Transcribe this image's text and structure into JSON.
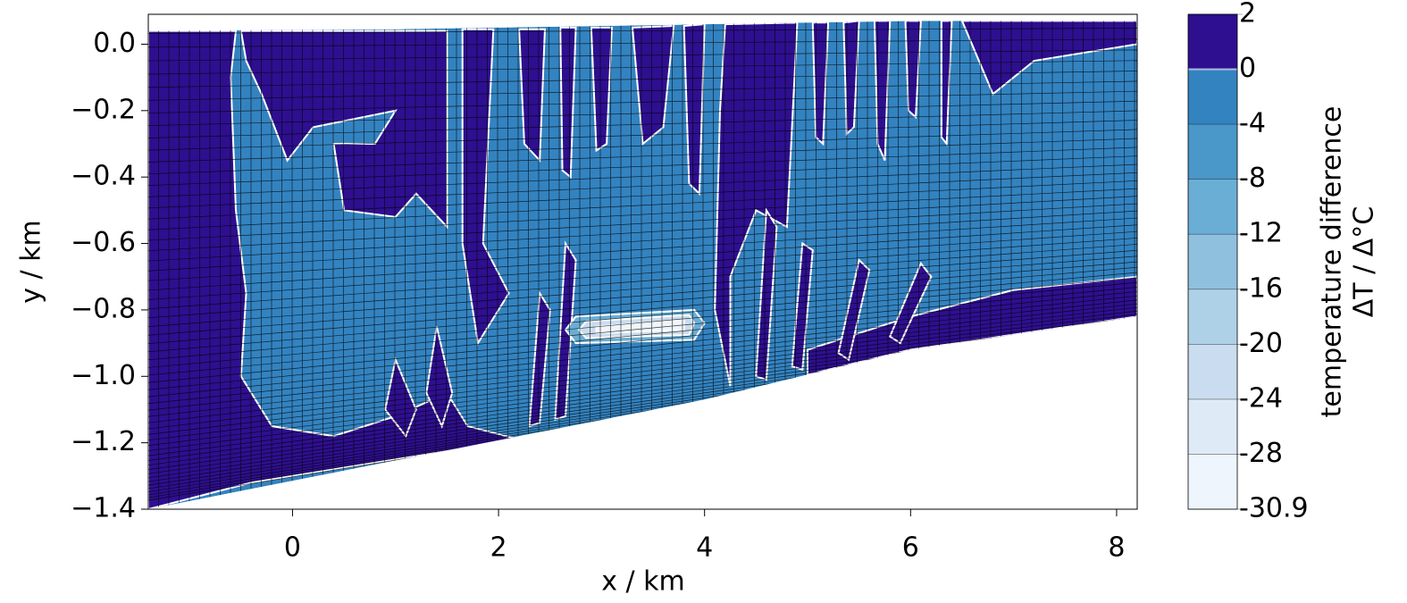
{
  "chart_data": {
    "type": "contour",
    "xlabel": "x / km",
    "ylabel": "y / km",
    "xlim": [
      -1.4,
      8.2
    ],
    "ylim": [
      -1.4,
      0.09
    ],
    "xticks": [
      0,
      2,
      4,
      6,
      8
    ],
    "yticks": [
      {
        "value": 0,
        "label": "0.0"
      },
      {
        "value": -0.2,
        "label": "−0.2"
      },
      {
        "value": -0.4,
        "label": "−0.4"
      },
      {
        "value": -0.6,
        "label": "−0.6"
      },
      {
        "value": -0.8,
        "label": "−0.8"
      },
      {
        "value": -1.0,
        "label": "−1.0"
      },
      {
        "value": -1.2,
        "label": "−1.2"
      },
      {
        "value": -1.4,
        "label": "−1.4"
      }
    ],
    "colorbar_label": [
      "temperature difference",
      "ΔT / Δ°C"
    ],
    "levels": [
      -30.9,
      -28,
      -24,
      -20,
      -16,
      -12,
      -8,
      -4,
      0,
      2
    ],
    "colors": [
      "#eef5fc",
      "#deebf7",
      "#cadcef",
      "#afd1e7",
      "#8fc1de",
      "#6aaed6",
      "#4a97c9",
      "#3383c0",
      "#2e0f8f"
    ],
    "regions": [
      {
        "value": -2,
        "x": [
          -1.4,
          1,
          4,
          6,
          8.2,
          8.2,
          6,
          4,
          -1.4
        ],
        "y": [
          0.04,
          0.045,
          0.06,
          0.07,
          0.07,
          -0.82,
          -0.92,
          -1.07,
          -1.4
        ]
      },
      {
        "value": 1,
        "x": [
          -1.4,
          -0.55,
          -0.6,
          -0.55,
          -0.45,
          -0.5,
          -0.2,
          0.4,
          1.0,
          1.5,
          1.7,
          2.2,
          -0.4,
          -1.4
        ],
        "y": [
          0.04,
          0.04,
          -0.1,
          -0.5,
          -0.75,
          -1.0,
          -1.15,
          -1.18,
          -1.12,
          -1.05,
          -1.15,
          -1.19,
          -1.32,
          -1.4
        ]
      },
      {
        "value": 1,
        "x": [
          -0.5,
          1.5,
          1.5,
          1.2,
          1.0,
          0.5,
          0.4,
          0.8,
          1.0,
          0.2,
          -0.05,
          -0.3,
          -0.45
        ],
        "y": [
          0.04,
          0.04,
          -0.55,
          -0.45,
          -0.52,
          -0.5,
          -0.3,
          -0.3,
          -0.2,
          -0.25,
          -0.35,
          -0.15,
          -0.05
        ]
      },
      {
        "value": 1,
        "x": [
          1.65,
          1.95,
          1.85,
          2.1,
          1.8,
          1.65
        ],
        "y": [
          0.045,
          0.045,
          -0.6,
          -0.75,
          -0.9,
          -0.6
        ]
      },
      {
        "value": 1,
        "x": [
          2.2,
          2.45,
          2.4,
          2.25
        ],
        "y": [
          0.045,
          0.045,
          -0.35,
          -0.3
        ]
      },
      {
        "value": 1,
        "x": [
          2.6,
          2.75,
          2.7,
          2.62
        ],
        "y": [
          0.05,
          0.05,
          -0.4,
          -0.38
        ]
      },
      {
        "value": 1,
        "x": [
          2.9,
          3.1,
          3.05,
          2.95
        ],
        "y": [
          0.05,
          0.05,
          -0.3,
          -0.32
        ]
      },
      {
        "value": 1,
        "x": [
          3.3,
          3.7,
          3.6,
          3.4
        ],
        "y": [
          0.05,
          0.055,
          -0.25,
          -0.3
        ]
      },
      {
        "value": 1,
        "x": [
          3.8,
          4.0,
          3.95,
          3.85
        ],
        "y": [
          0.055,
          0.06,
          -0.45,
          -0.42
        ]
      },
      {
        "value": 1,
        "x": [
          4.2,
          4.9,
          4.8,
          4.5,
          4.25,
          4.25,
          4.1,
          4.15
        ],
        "y": [
          0.06,
          0.065,
          -0.55,
          -0.5,
          -0.7,
          -1.03,
          -0.8,
          -0.2
        ]
      },
      {
        "value": 1,
        "x": [
          5.05,
          5.2,
          5.15,
          5.08
        ],
        "y": [
          0.065,
          0.065,
          -0.3,
          -0.28
        ]
      },
      {
        "value": 1,
        "x": [
          5.35,
          5.5,
          5.45,
          5.38
        ],
        "y": [
          0.065,
          0.07,
          -0.25,
          -0.27
        ]
      },
      {
        "value": 1,
        "x": [
          5.65,
          5.8,
          5.75,
          5.68
        ],
        "y": [
          0.07,
          0.07,
          -0.35,
          -0.3
        ]
      },
      {
        "value": 1,
        "x": [
          5.95,
          6.1,
          6.05,
          5.98
        ],
        "y": [
          0.07,
          0.07,
          -0.22,
          -0.2
        ]
      },
      {
        "value": 1,
        "x": [
          6.3,
          6.4,
          6.35,
          6.3
        ],
        "y": [
          0.07,
          0.07,
          -0.3,
          -0.28
        ]
      },
      {
        "value": 1,
        "x": [
          6.5,
          8.2,
          8.2,
          7.2,
          6.8
        ],
        "y": [
          0.07,
          0.07,
          0.0,
          -0.05,
          -0.15
        ]
      },
      {
        "value": 1,
        "x": [
          5.0,
          6.0,
          7.0,
          8.2,
          8.2,
          6.0,
          5.0
        ],
        "y": [
          -0.92,
          -0.82,
          -0.74,
          -0.7,
          -0.82,
          -0.92,
          -0.995
        ]
      },
      {
        "value": 1,
        "x": [
          0.9,
          1.0,
          1.2,
          1.1
        ],
        "y": [
          -1.1,
          -0.95,
          -1.1,
          -1.18
        ]
      },
      {
        "value": 1,
        "x": [
          1.3,
          1.4,
          1.55,
          1.45
        ],
        "y": [
          -1.05,
          -0.85,
          -1.05,
          -1.15
        ]
      },
      {
        "value": 1,
        "x": [
          2.3,
          2.4,
          2.5,
          2.4
        ],
        "y": [
          -1.15,
          -0.75,
          -0.8,
          -1.14
        ]
      },
      {
        "value": 1,
        "x": [
          2.55,
          2.65,
          2.75,
          2.65
        ],
        "y": [
          -1.13,
          -0.6,
          -0.65,
          -1.12
        ]
      },
      {
        "value": 1,
        "x": [
          4.5,
          4.6,
          4.7,
          4.6
        ],
        "y": [
          -1.0,
          -0.5,
          -0.55,
          -1.01
        ]
      },
      {
        "value": 1,
        "x": [
          4.85,
          4.95,
          5.05,
          4.95
        ],
        "y": [
          -0.97,
          -0.6,
          -0.62,
          -0.98
        ]
      },
      {
        "value": 1,
        "x": [
          5.3,
          5.5,
          5.6,
          5.4
        ],
        "y": [
          -0.93,
          -0.65,
          -0.68,
          -0.95
        ]
      },
      {
        "value": 1,
        "x": [
          5.8,
          6.1,
          6.2,
          5.9
        ],
        "y": [
          -0.88,
          -0.66,
          -0.7,
          -0.9
        ]
      },
      {
        "value": -10,
        "x": [
          2.75,
          3.9,
          4.0,
          3.9,
          2.75,
          2.65
        ],
        "y": [
          -0.82,
          -0.8,
          -0.84,
          -0.89,
          -0.9,
          -0.86
        ]
      },
      {
        "value": -22,
        "x": [
          2.85,
          3.85,
          3.9,
          3.85,
          2.85,
          2.78
        ],
        "y": [
          -0.835,
          -0.815,
          -0.84,
          -0.875,
          -0.885,
          -0.86
        ]
      },
      {
        "value": -30,
        "x": [
          2.95,
          3.8,
          3.8,
          2.95
        ],
        "y": [
          -0.85,
          -0.83,
          -0.86,
          -0.87
        ]
      }
    ]
  }
}
